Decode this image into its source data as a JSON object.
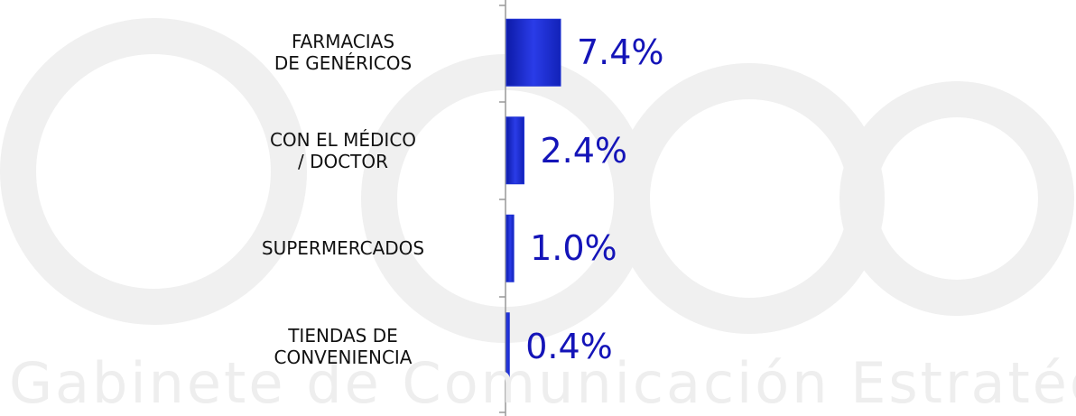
{
  "chart_data": {
    "type": "bar",
    "orientation": "horizontal",
    "watermark": "Gabinete de Comunicación Estratégica",
    "categories": [
      "FARMACIAS\nDE GENÉRICOS",
      "CON EL MÉDICO\n/ DOCTOR",
      "SUPERMERCADOS",
      "TIENDAS DE\nCONVENIENCIA"
    ],
    "values": [
      7.4,
      2.4,
      1.0,
      0.4
    ],
    "value_labels": [
      "7.4%",
      "2.4%",
      "1.0%",
      "0.4%"
    ],
    "color": "#1c2fd4",
    "label_color": "#1414b8"
  }
}
